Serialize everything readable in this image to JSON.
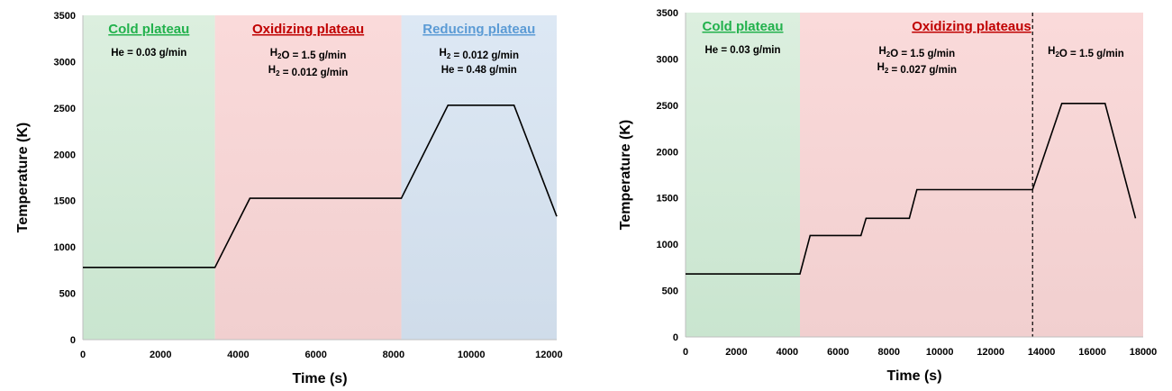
{
  "chart_data": [
    {
      "type": "line",
      "xlabel": "Time (s)",
      "ylabel": "Temperature (K)",
      "xlim": [
        0,
        12200
      ],
      "ylim": [
        0,
        3500
      ],
      "xticks": [
        0,
        2000,
        4000,
        6000,
        8000,
        10000,
        12000
      ],
      "yticks": [
        0,
        500,
        1000,
        1500,
        2000,
        2500,
        3000,
        3500
      ],
      "regions": [
        {
          "label": "Cold plateau",
          "x0": 0,
          "x1": 3400,
          "fill": "#dcefdf",
          "fill_bottom": "#c9e5cf",
          "label_color": "#22b14c",
          "annotations": [
            "He = 0.03 g/min"
          ]
        },
        {
          "label": "Oxidizing plateau",
          "x0": 3400,
          "x1": 8200,
          "fill": "#fadada",
          "fill_bottom": "#f1cfcf",
          "label_color": "#c00000",
          "annotations": [
            "H2O = 1.5 g/min",
            "H2 = 0.012 g/min"
          ]
        },
        {
          "label": "Reducing plateau",
          "x0": 8200,
          "x1": 12200,
          "fill": "#dde8f4",
          "fill_bottom": "#cfdcea",
          "label_color": "#5b9bd5",
          "annotations": [
            "H2 = 0.012 g/min",
            "He = 0.48 g/min"
          ]
        }
      ],
      "dividers": [],
      "series": [
        {
          "x": [
            0,
            3400,
            4300,
            8200,
            9400,
            11100,
            12200
          ],
          "y": [
            780,
            780,
            1525,
            1525,
            2530,
            2530,
            1330
          ],
          "color": "#000000"
        }
      ]
    },
    {
      "type": "line",
      "xlabel": "Time (s)",
      "ylabel": "Temperature (K)",
      "xlim": [
        0,
        18000
      ],
      "ylim": [
        0,
        3500
      ],
      "xticks": [
        0,
        2000,
        4000,
        6000,
        8000,
        10000,
        12000,
        14000,
        16000,
        18000
      ],
      "yticks": [
        0,
        500,
        1000,
        1500,
        2000,
        2500,
        3000,
        3500
      ],
      "regions": [
        {
          "label": "Cold plateau",
          "x0": 0,
          "x1": 4500,
          "fill": "#dcefdf",
          "fill_bottom": "#c9e5cf",
          "label_color": "#22b14c",
          "annotations": [
            "He = 0.03 g/min"
          ]
        },
        {
          "label": "Oxidizing plateaus",
          "x0": 4500,
          "x1": 18000,
          "fill": "#fadada",
          "fill_bottom": "#f1cfcf",
          "label_color": "#c00000",
          "annotations": []
        }
      ],
      "extra_annotations": [
        {
          "lines": [
            "H2O = 1.5 g/min",
            "H2 = 0.027 g/min"
          ],
          "x": 9100
        },
        {
          "lines": [
            "H2O = 1.5 g/min"
          ],
          "x": 15750
        }
      ],
      "dividers": [
        13650
      ],
      "series": [
        {
          "x": [
            0,
            4500,
            4900,
            6900,
            7100,
            8800,
            9100,
            13650,
            14800,
            16500,
            17700
          ],
          "y": [
            680,
            680,
            1095,
            1095,
            1280,
            1280,
            1590,
            1590,
            2520,
            2520,
            1280
          ],
          "color": "#000000"
        }
      ]
    }
  ]
}
